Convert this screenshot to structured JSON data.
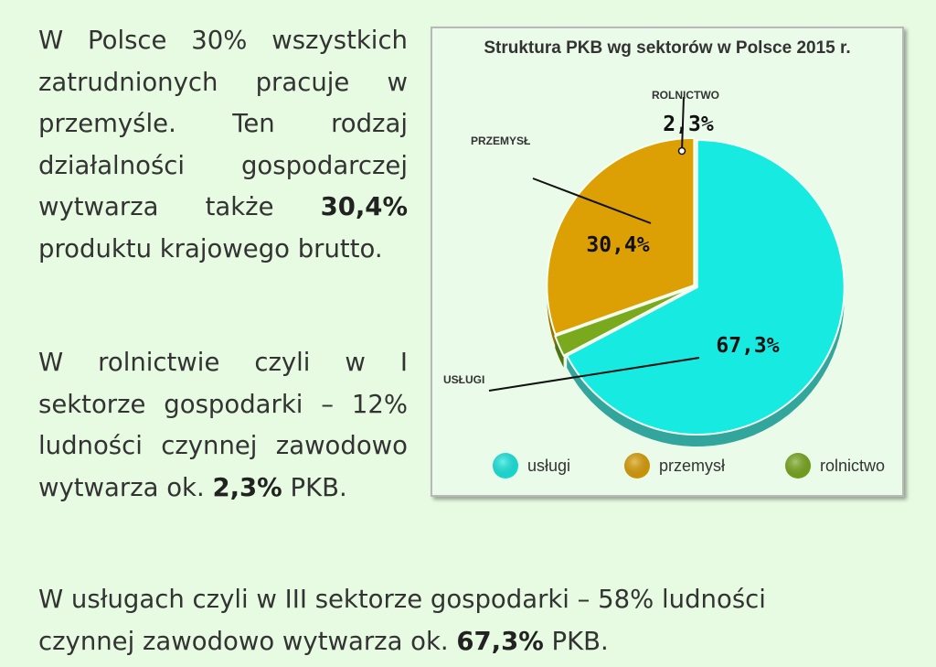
{
  "texts": {
    "p1_main": "W Polsce 30% wszystkich zatrudnionych pracuje w przemyśle. Ten rodzaj działalności gospodarczej wytwarza także ",
    "p1_value": "30,4%",
    "p1_tail": " produktu krajowego brutto.",
    "p2_main": "W rolnictwie czyli w I sektorze gospodarki – 12% ludności czynnej zawodowo wytwarza ok. ",
    "p2_value": "2,3%",
    "p2_tail": " PKB.",
    "p3_main": "W usługach czyli w III sektorze gospodarki – 58% ludności czynnej zawodowo wytwarza ok. ",
    "p3_value": "67,3%",
    "p3_tail": " PKB."
  },
  "chart_data": {
    "type": "pie",
    "title": "Struktura PKB wg sektorów w Polsce 2015 r.",
    "slices": [
      {
        "name": "usługi",
        "value": 67.3,
        "value_label": "67,3%",
        "callout": "USŁUGI",
        "color": "#17eae1",
        "side": "#32a59c"
      },
      {
        "name": "rolnictwo",
        "value": 2.3,
        "value_label": "2,3%",
        "callout": "ROLNICTWO",
        "color": "#7aa91d",
        "side": "#4f7413"
      },
      {
        "name": "przemysł",
        "value": 30.4,
        "value_label": "30,4%",
        "callout": "PRZEMYSŁ",
        "color": "#dca005",
        "side": "#9a7004"
      }
    ],
    "legend": {
      "position": "bottom",
      "entries": [
        {
          "label": "usługi",
          "color": "#17eae1"
        },
        {
          "label": "przemysł",
          "color": "#dca005"
        },
        {
          "label": "rolnictwo",
          "color": "#7aa91d"
        }
      ]
    }
  }
}
